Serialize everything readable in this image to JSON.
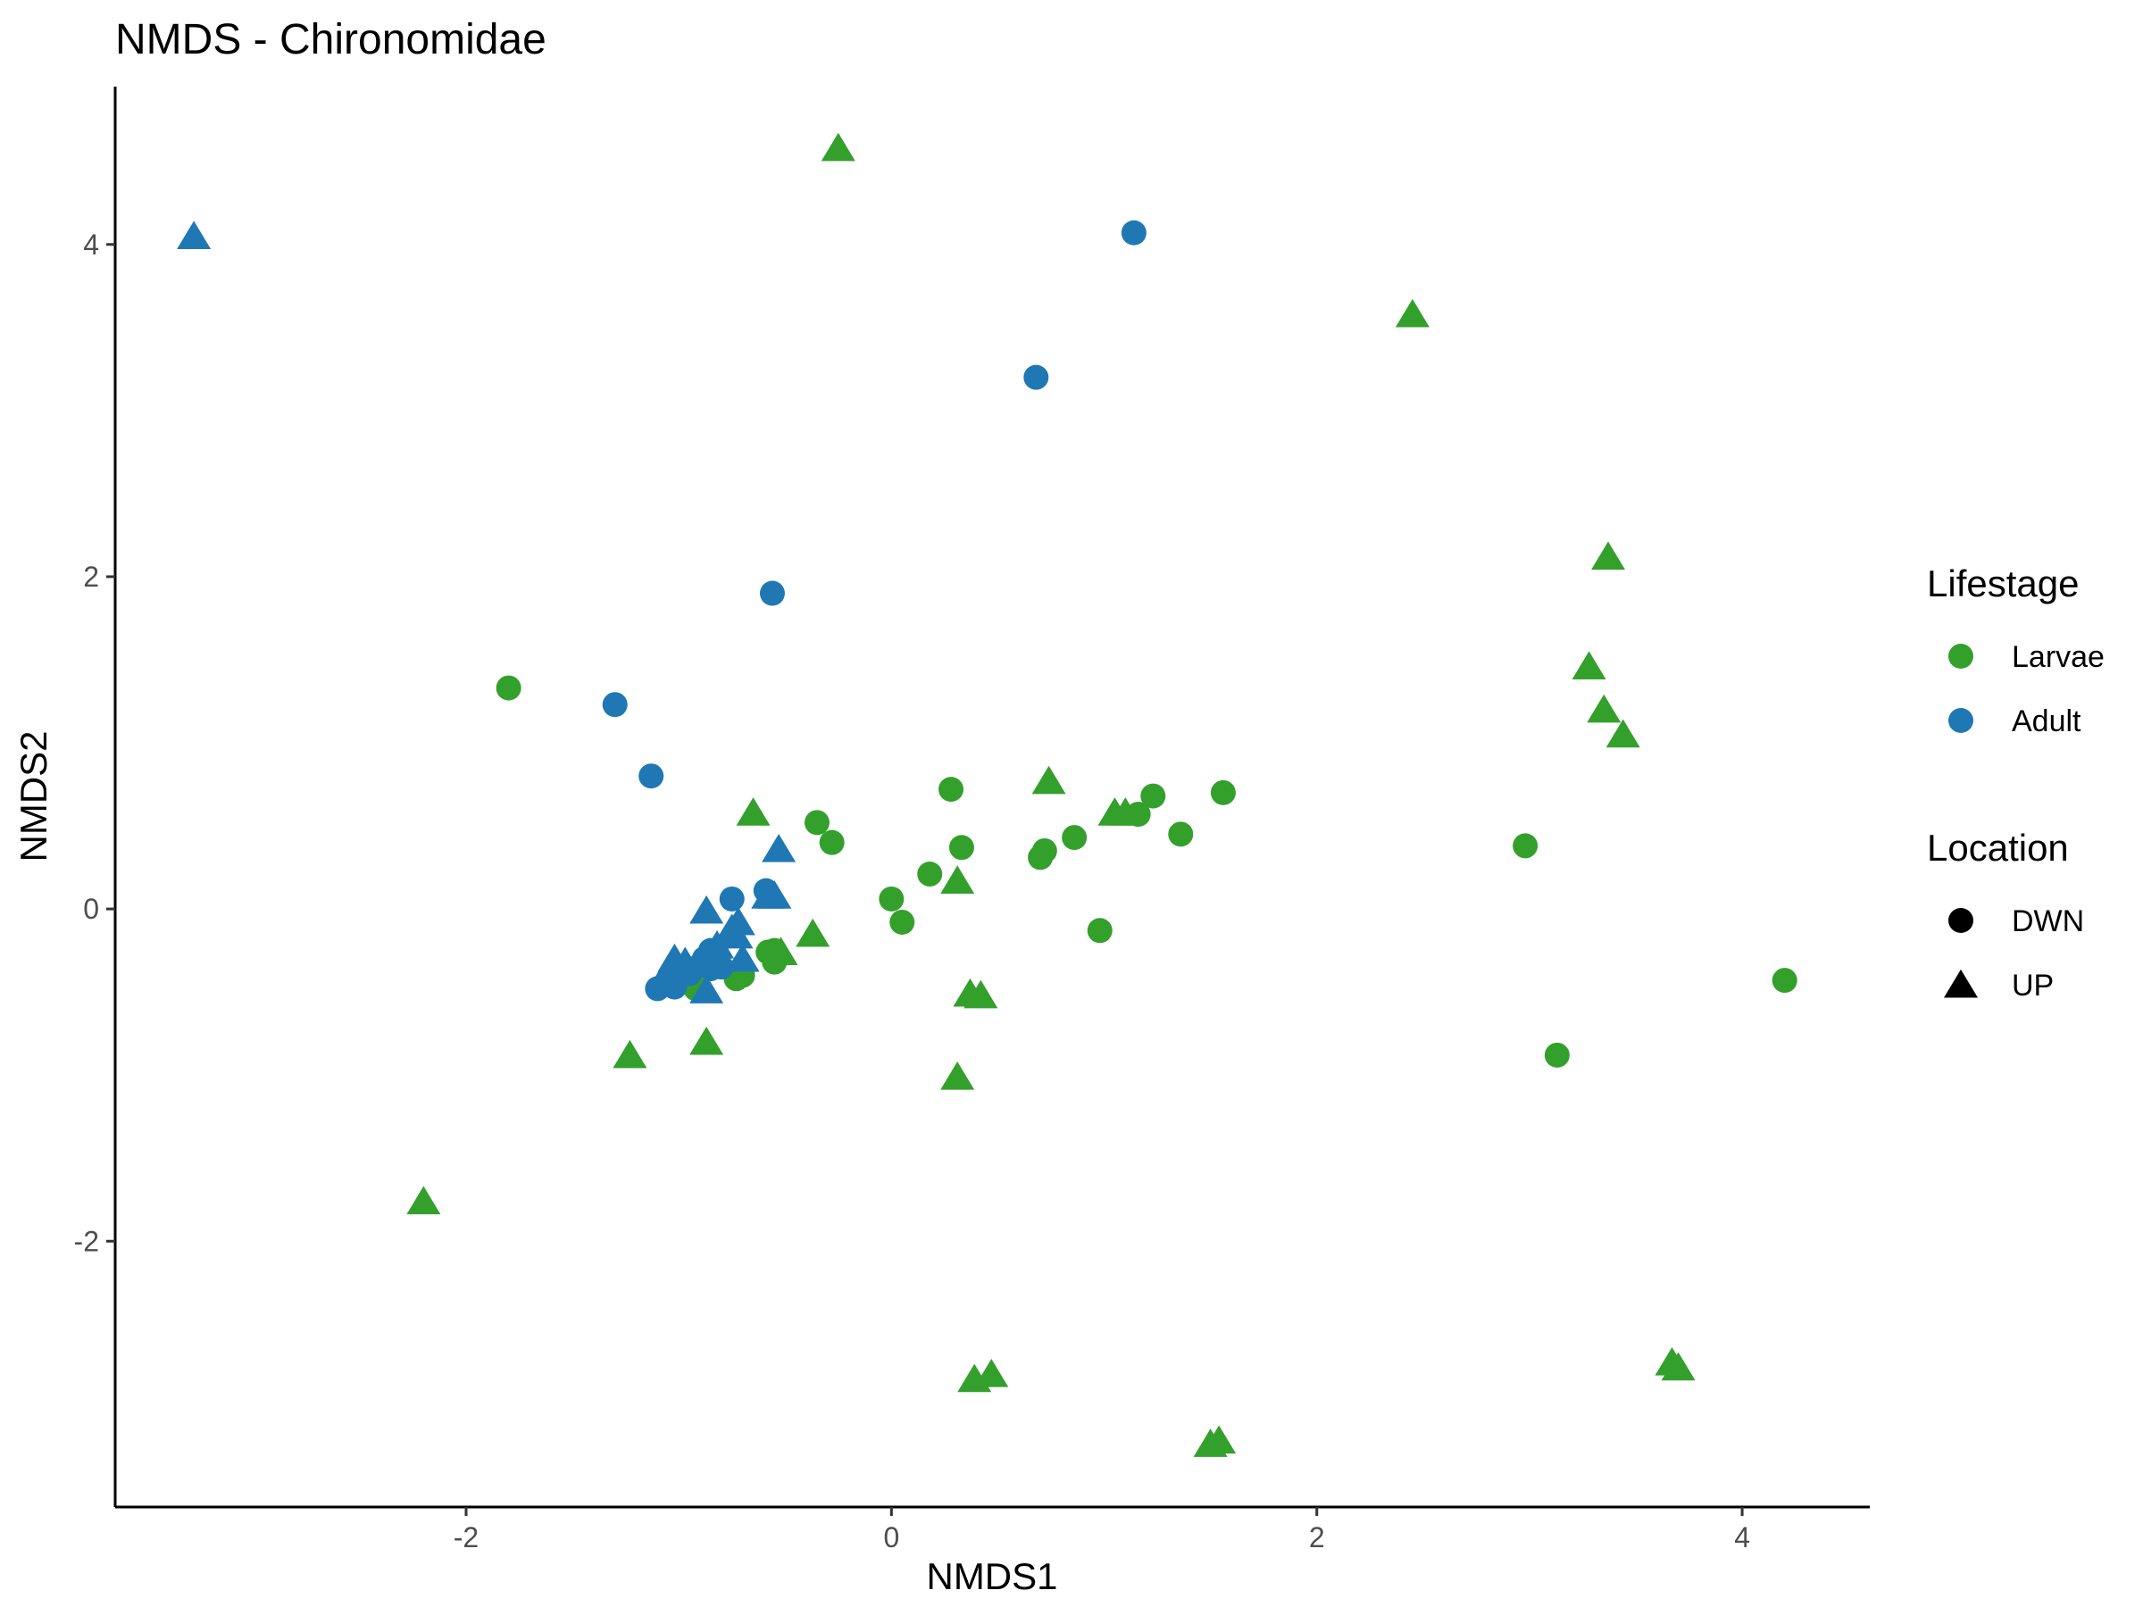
{
  "chart_data": {
    "type": "scatter",
    "title": "NMDS - Chironomidae",
    "xlabel": "NMDS1",
    "ylabel": "NMDS2",
    "xlim": [
      -3.65,
      4.6
    ],
    "ylim": [
      -3.6,
      4.95
    ],
    "xticks": [
      -2,
      0,
      2,
      4
    ],
    "yticks": [
      -2,
      0,
      2,
      4
    ],
    "grid": false,
    "legend_position": "right",
    "colors": {
      "Larvae": "#33a02c",
      "Adult": "#1f78b4",
      "key": "#000000"
    },
    "legends": [
      {
        "title": "Lifestage",
        "items": [
          {
            "label": "Larvae",
            "shape": "circle",
            "color": "#33a02c"
          },
          {
            "label": "Adult",
            "shape": "circle",
            "color": "#1f78b4"
          }
        ]
      },
      {
        "title": "Location",
        "items": [
          {
            "label": "DWN",
            "shape": "circle",
            "color": "#000000"
          },
          {
            "label": "UP",
            "shape": "triangle",
            "color": "#000000"
          }
        ]
      }
    ],
    "series": [
      {
        "lifestage": "Larvae",
        "location": "DWN",
        "points": [
          [
            -1.8,
            1.33
          ],
          [
            -0.35,
            0.52
          ],
          [
            -0.28,
            0.4
          ],
          [
            0.28,
            0.72
          ],
          [
            0.33,
            0.37
          ],
          [
            0.0,
            0.06
          ],
          [
            0.05,
            -0.08
          ],
          [
            0.18,
            0.21
          ],
          [
            0.7,
            0.31
          ],
          [
            0.72,
            0.35
          ],
          [
            0.86,
            0.43
          ],
          [
            0.98,
            -0.13
          ],
          [
            1.16,
            0.57
          ],
          [
            1.23,
            0.68
          ],
          [
            1.36,
            0.45
          ],
          [
            1.56,
            0.7
          ],
          [
            2.98,
            0.38
          ],
          [
            3.13,
            -0.88
          ],
          [
            4.2,
            -0.43
          ],
          [
            -0.55,
            -0.25
          ],
          [
            -0.55,
            -0.32
          ],
          [
            -0.7,
            -0.4
          ],
          [
            -0.73,
            -0.42
          ],
          [
            -0.92,
            -0.48
          ],
          [
            -0.58,
            -0.26
          ]
        ]
      },
      {
        "lifestage": "Larvae",
        "location": "UP",
        "points": [
          [
            -0.25,
            4.58
          ],
          [
            2.45,
            3.58
          ],
          [
            3.37,
            2.12
          ],
          [
            3.28,
            1.46
          ],
          [
            3.35,
            1.2
          ],
          [
            3.44,
            1.05
          ],
          [
            0.74,
            0.77
          ],
          [
            -0.65,
            0.58
          ],
          [
            1.05,
            0.58
          ],
          [
            1.1,
            0.58
          ],
          [
            0.31,
            0.17
          ],
          [
            -0.37,
            -0.15
          ],
          [
            -0.52,
            -0.26
          ],
          [
            0.37,
            -0.51
          ],
          [
            0.42,
            -0.52
          ],
          [
            -1.23,
            -0.88
          ],
          [
            -0.87,
            -0.8
          ],
          [
            0.31,
            -1.01
          ],
          [
            -2.2,
            -1.76
          ],
          [
            0.39,
            -2.83
          ],
          [
            0.47,
            -2.8
          ],
          [
            3.67,
            -2.73
          ],
          [
            3.7,
            -2.76
          ],
          [
            1.5,
            -3.22
          ],
          [
            1.54,
            -3.2
          ]
        ]
      },
      {
        "lifestage": "Adult",
        "location": "DWN",
        "points": [
          [
            1.14,
            4.07
          ],
          [
            0.68,
            3.2
          ],
          [
            -0.56,
            1.9
          ],
          [
            -1.3,
            1.23
          ],
          [
            -1.13,
            0.8
          ],
          [
            -0.75,
            0.06
          ],
          [
            -0.59,
            0.11
          ],
          [
            -0.85,
            -0.25
          ],
          [
            -0.88,
            -0.3
          ],
          [
            -0.82,
            -0.27
          ],
          [
            -0.9,
            -0.34
          ],
          [
            -1.02,
            -0.47
          ],
          [
            -1.1,
            -0.48
          ],
          [
            -0.95,
            -0.39
          ],
          [
            -0.8,
            -0.35
          ],
          [
            -0.85,
            -0.36
          ]
        ]
      },
      {
        "lifestage": "Adult",
        "location": "UP",
        "points": [
          [
            -3.28,
            4.05
          ],
          [
            -0.53,
            0.36
          ],
          [
            -0.55,
            0.08
          ],
          [
            -0.58,
            0.08
          ],
          [
            -0.87,
            -0.01
          ],
          [
            -0.72,
            -0.08
          ],
          [
            -0.75,
            -0.12
          ],
          [
            -0.73,
            -0.16
          ],
          [
            -1.02,
            -0.3
          ],
          [
            -0.97,
            -0.32
          ],
          [
            -1.0,
            -0.35
          ],
          [
            -1.05,
            -0.37
          ],
          [
            -0.82,
            -0.22
          ],
          [
            -0.7,
            -0.3
          ],
          [
            -0.87,
            -0.49
          ]
        ]
      }
    ]
  }
}
